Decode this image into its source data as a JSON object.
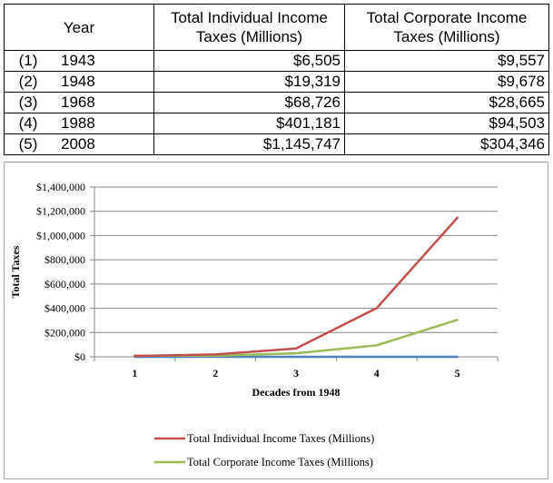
{
  "table": {
    "headers": {
      "year": "Year",
      "individual": "Total Individual Income Taxes (Millions)",
      "corporate": "Total Corporate Income Taxes (Millions)"
    },
    "rows": [
      {
        "idx": "(1)",
        "year": "1943",
        "individual": "$6,505",
        "corporate": "$9,557"
      },
      {
        "idx": "(2)",
        "year": "1948",
        "individual": "$19,319",
        "corporate": "$9,678"
      },
      {
        "idx": "(3)",
        "year": "1968",
        "individual": "$68,726",
        "corporate": "$28,665"
      },
      {
        "idx": "(4)",
        "year": "1988",
        "individual": "$401,181",
        "corporate": "$94,503"
      },
      {
        "idx": "(5)",
        "year": "2008",
        "individual": "$1,145,747",
        "corporate": "$304,346"
      }
    ]
  },
  "chart_data": {
    "type": "line",
    "x": [
      1,
      2,
      3,
      4,
      5
    ],
    "xlabel": "Decades from 1948",
    "ylabel": "Total Taxes",
    "ylim": [
      0,
      1400000
    ],
    "yticks": [
      "$0",
      "$200,000",
      "$400,000",
      "$600,000",
      "$800,000",
      "$1,000,000",
      "$1,200,000",
      "$1,400,000"
    ],
    "ytick_values": [
      0,
      200000,
      400000,
      600000,
      800000,
      1000000,
      1200000,
      1400000
    ],
    "xticks": [
      "1",
      "2",
      "3",
      "4",
      "5"
    ],
    "grid": true,
    "legend_position": "bottom",
    "series": [
      {
        "name": "Total Individual Income Taxes (Millions)",
        "color": "#c0504d",
        "values": [
          6505,
          19319,
          68726,
          401181,
          1145747
        ]
      },
      {
        "name": "Total Corporate Income Taxes (Millions)",
        "color": "#9bbb59",
        "values": [
          9557,
          9678,
          28665,
          94503,
          304346
        ]
      },
      {
        "color": "#4f81bd",
        "values": [
          1,
          2,
          3,
          4,
          5
        ]
      }
    ]
  }
}
